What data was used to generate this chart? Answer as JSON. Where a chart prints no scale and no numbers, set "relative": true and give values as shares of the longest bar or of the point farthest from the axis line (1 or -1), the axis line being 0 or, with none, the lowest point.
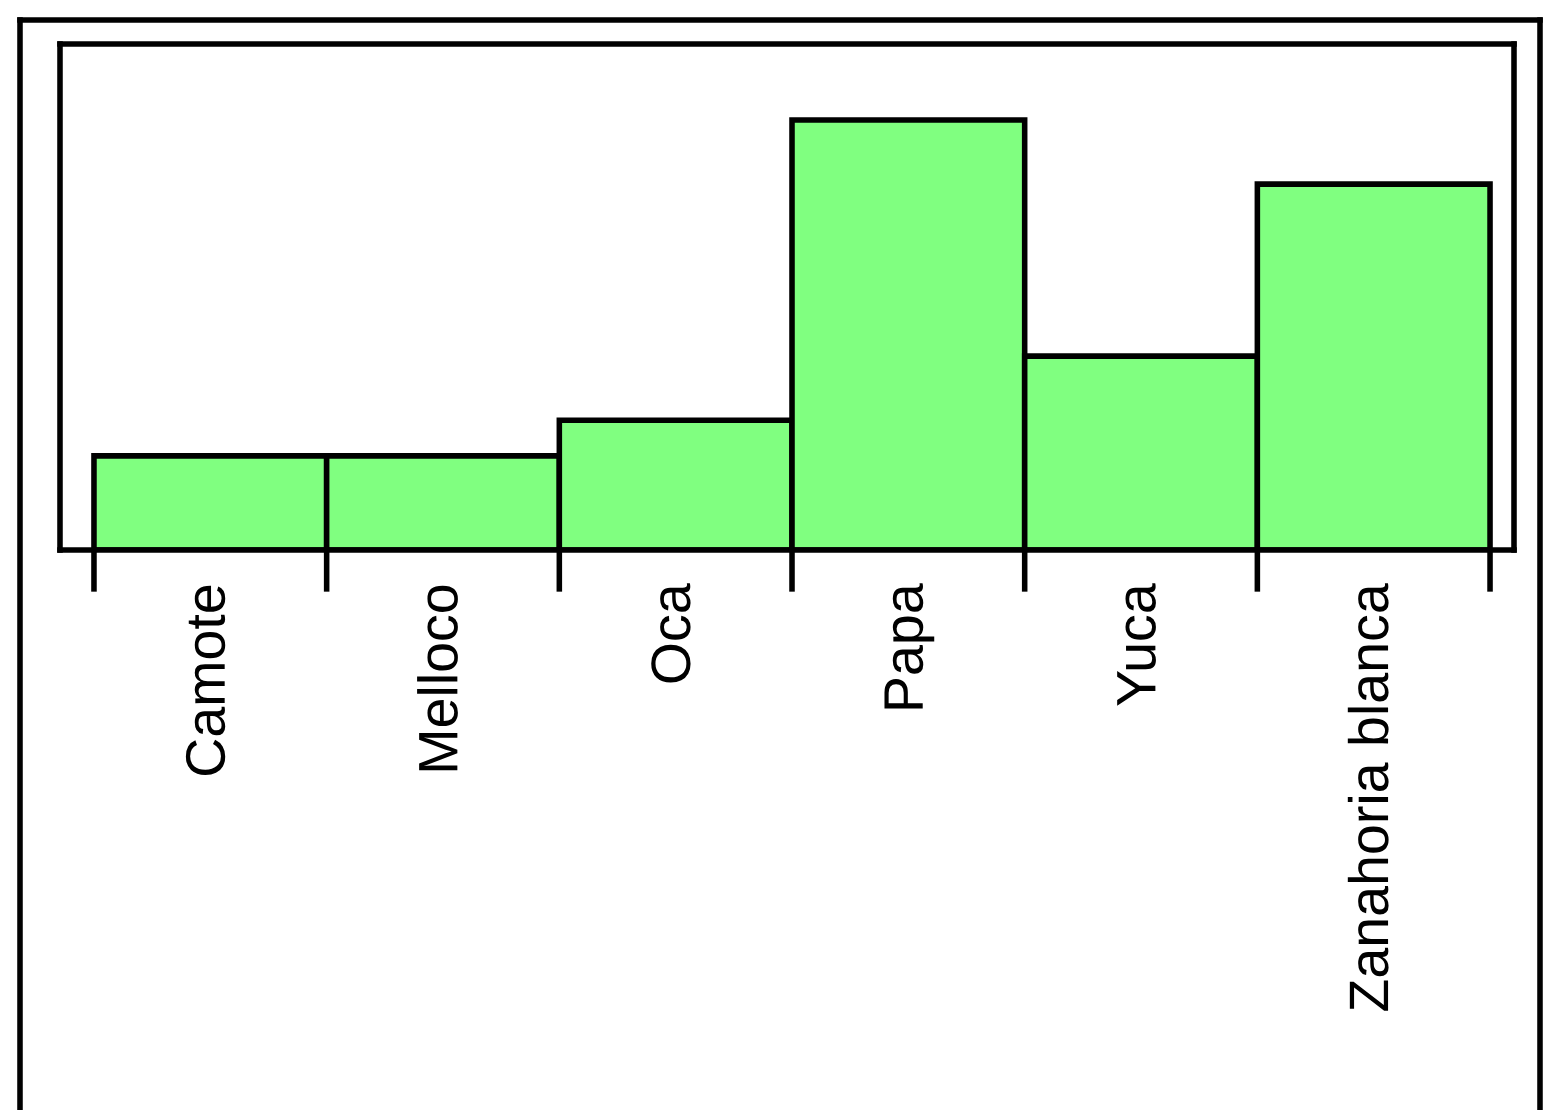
{
  "chart_data": {
    "type": "bar",
    "relative": true,
    "categories": [
      "Camote",
      "Melloco",
      "Oca",
      "Papa",
      "Yuca",
      "Zanahoria blanca"
    ],
    "values": [
      0.219,
      0.219,
      0.302,
      1,
      0.451,
      0.851
    ],
    "color": "#80ff80",
    "grid": false,
    "legend": false
  }
}
